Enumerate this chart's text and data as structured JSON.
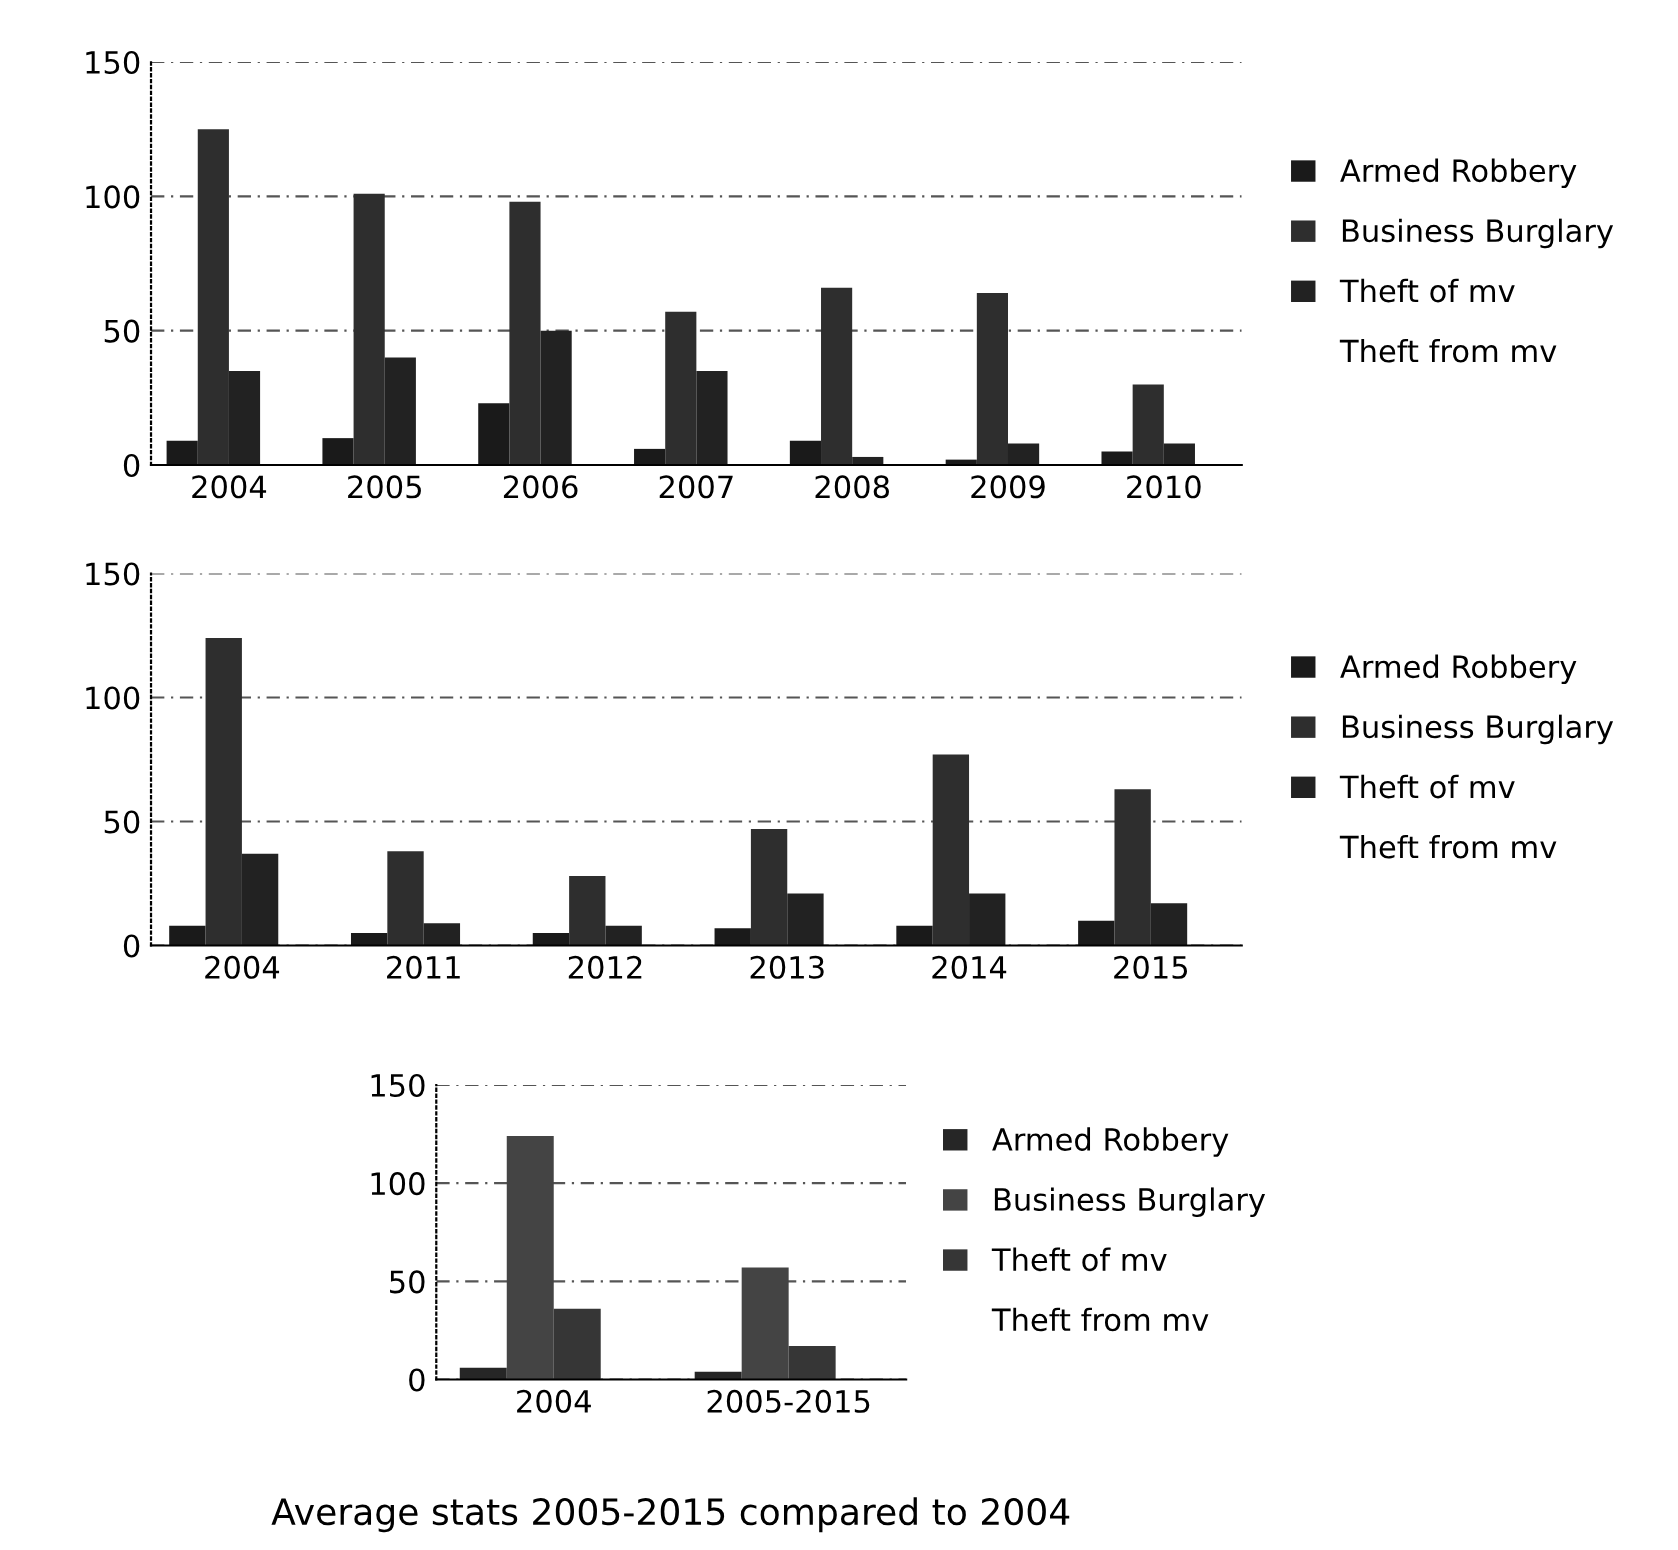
{
  "chart_data": [
    {
      "type": "bar",
      "categories": [
        "2004",
        "2005",
        "2006",
        "2007",
        "2008",
        "2009",
        "2010"
      ],
      "ylim": [
        0,
        150
      ],
      "yticks": [
        0,
        50,
        100,
        150
      ],
      "grid": "y",
      "legend": "right",
      "series": [
        {
          "name": "Armed Robbery",
          "color": "#1a1a1a",
          "values": [
            9,
            10,
            23,
            6,
            9,
            2,
            5
          ]
        },
        {
          "name": "Business Burglary",
          "color": "#2e2e2e",
          "values": [
            125,
            101,
            98,
            57,
            66,
            64,
            30
          ]
        },
        {
          "name": "Theft of mv",
          "color": "#222222",
          "values": [
            35,
            40,
            50,
            35,
            3,
            8,
            8
          ]
        },
        {
          "name": "Theft from mv",
          "values": [
            null,
            null,
            null,
            null,
            null,
            null,
            null
          ]
        }
      ]
    },
    {
      "type": "bar",
      "categories": [
        "2004",
        "2011",
        "2012",
        "2013",
        "2014",
        "2015"
      ],
      "ylim": [
        0,
        150
      ],
      "yticks": [
        0,
        50,
        100,
        150
      ],
      "grid": "y",
      "legend": "right",
      "series": [
        {
          "name": "Armed Robbery",
          "color": "#1a1a1a",
          "values": [
            8,
            5,
            5,
            7,
            8,
            10
          ]
        },
        {
          "name": "Business Burglary",
          "color": "#2e2e2e",
          "values": [
            124,
            38,
            28,
            47,
            77,
            63
          ]
        },
        {
          "name": "Theft of mv",
          "color": "#222222",
          "values": [
            37,
            9,
            8,
            21,
            21,
            17
          ]
        },
        {
          "name": "Theft from mv",
          "values": [
            null,
            null,
            null,
            null,
            null,
            null
          ]
        }
      ]
    },
    {
      "type": "bar",
      "title": "Average stats 2005-2015 compared to 2004",
      "categories": [
        "2004",
        "2005-2015"
      ],
      "ylim": [
        0,
        150
      ],
      "yticks": [
        0,
        50,
        100,
        150
      ],
      "grid": "y",
      "legend": "right",
      "series": [
        {
          "name": "Armed Robbery",
          "color": "#262626",
          "values": [
            6,
            4
          ]
        },
        {
          "name": "Business Burglary",
          "color": "#444444",
          "values": [
            124,
            57
          ]
        },
        {
          "name": "Theft of mv",
          "color": "#363636",
          "values": [
            36,
            17
          ]
        },
        {
          "name": "Theft from mv",
          "values": [
            null,
            null
          ]
        }
      ]
    }
  ]
}
